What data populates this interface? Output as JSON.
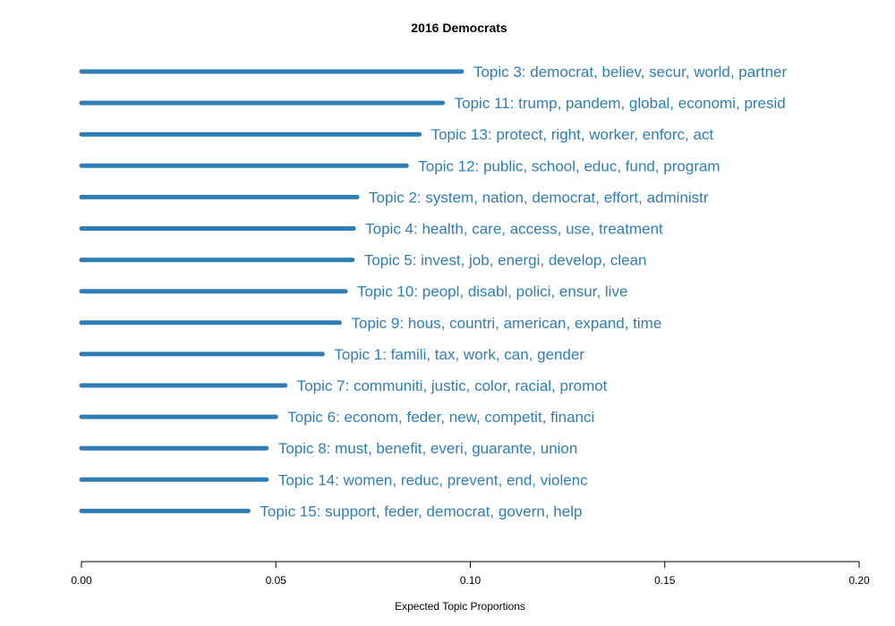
{
  "chart_data": {
    "type": "bar",
    "orientation": "horizontal",
    "title": "2016 Democrats",
    "xlabel": "Expected Topic Proportions",
    "ylabel": "",
    "xlim": [
      0,
      0.2
    ],
    "xticks": [
      "0.00",
      "0.05",
      "0.10",
      "0.15",
      "0.20"
    ],
    "xtick_values": [
      0,
      0.05,
      0.1,
      0.15,
      0.2
    ],
    "grid": false,
    "color": "#2e7eb5",
    "categories": [
      "Topic 3: democrat, believ, secur, world, partner",
      "Topic 11: trump, pandem, global, economi, presid",
      "Topic 13: protect, right, worker, enforc, act",
      "Topic 12: public, school, educ, fund, program",
      "Topic 2: system, nation, democrat, effort, administr",
      "Topic 4: health, care, access, use, treatment",
      "Topic 5: invest, job, energi, develop, clean",
      "Topic 10: peopl, disabl, polici, ensur, live",
      "Topic 9: hous, countri, american, expand, time",
      "Topic 1: famili, tax, work, can, gender",
      "Topic 7: communiti, justic, color, racial, promot",
      "Topic 6: econom, feder, new, competit, financi",
      "Topic 8: must, benefit, everi, guarante, union",
      "Topic 14: women, reduc, prevent, end, violenc",
      "Topic 15: support, feder, democrat, govern, help"
    ],
    "values": [
      0.0978,
      0.0929,
      0.0869,
      0.0836,
      0.0709,
      0.07,
      0.0697,
      0.0679,
      0.0664,
      0.062,
      0.0524,
      0.05,
      0.0476,
      0.0476,
      0.0429
    ]
  }
}
